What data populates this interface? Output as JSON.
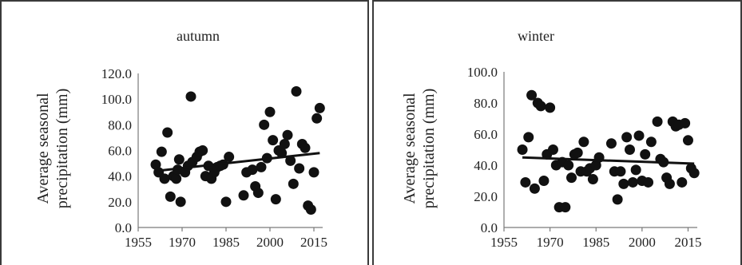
{
  "chart_data": [
    {
      "type": "scatter",
      "title": "autumn",
      "ylabel_lines": [
        "Average  seasonal",
        "precipitation (mm)"
      ],
      "xlabel": "",
      "xlim": [
        1955,
        2018
      ],
      "ylim": [
        0,
        120
      ],
      "x_ticks": [
        1955,
        1970,
        1985,
        2000,
        2015
      ],
      "y_ticks": [
        "0.0",
        "20.0",
        "40.0",
        "60.0",
        "80.0",
        "100.0",
        "120.0"
      ],
      "y_tick_values": [
        0,
        20,
        40,
        60,
        80,
        100,
        120
      ],
      "grid": false,
      "legend": "none",
      "points": [
        [
          1961,
          49
        ],
        [
          1962,
          43
        ],
        [
          1963,
          59
        ],
        [
          1964,
          38
        ],
        [
          1965,
          74
        ],
        [
          1966,
          24
        ],
        [
          1967,
          40
        ],
        [
          1968,
          38
        ],
        [
          1968.5,
          45
        ],
        [
          1969,
          53
        ],
        [
          1969.5,
          20
        ],
        [
          1971,
          43
        ],
        [
          1972,
          48
        ],
        [
          1973,
          102
        ],
        [
          1973.5,
          51
        ],
        [
          1975,
          55
        ],
        [
          1976,
          59
        ],
        [
          1977,
          60
        ],
        [
          1978,
          40
        ],
        [
          1979,
          48
        ],
        [
          1980,
          38
        ],
        [
          1981,
          43
        ],
        [
          1982,
          47
        ],
        [
          1983,
          48
        ],
        [
          1984,
          49
        ],
        [
          1985,
          20
        ],
        [
          1986,
          55
        ],
        [
          1991,
          25
        ],
        [
          1992,
          43
        ],
        [
          1994,
          45
        ],
        [
          1995,
          32
        ],
        [
          1996,
          27
        ],
        [
          1997,
          47
        ],
        [
          1998,
          80
        ],
        [
          1999,
          54
        ],
        [
          2000,
          90
        ],
        [
          2001,
          68
        ],
        [
          2002,
          22
        ],
        [
          2003,
          60
        ],
        [
          2004,
          58
        ],
        [
          2005,
          65
        ],
        [
          2006,
          72
        ],
        [
          2007,
          52
        ],
        [
          2008,
          34
        ],
        [
          2009,
          106
        ],
        [
          2010,
          46
        ],
        [
          2011,
          65
        ],
        [
          2012,
          62
        ],
        [
          2013,
          17
        ],
        [
          2014,
          14
        ],
        [
          2015,
          43
        ],
        [
          2016,
          85
        ],
        [
          2017,
          93
        ]
      ],
      "trendline": [
        [
          1961,
          44
        ],
        [
          2017,
          58
        ]
      ]
    },
    {
      "type": "scatter",
      "title": "winter",
      "ylabel_lines": [
        "Average  seasonal",
        "precipitation (mm)"
      ],
      "xlabel": "",
      "xlim": [
        1955,
        2018
      ],
      "ylim": [
        0,
        100
      ],
      "x_ticks": [
        1955,
        1970,
        1985,
        2000,
        2015
      ],
      "y_ticks": [
        "0.0",
        "20.0",
        "40.0",
        "60.0",
        "80.0",
        "100.0"
      ],
      "y_tick_values": [
        0,
        20,
        40,
        60,
        80,
        100
      ],
      "grid": false,
      "legend": "none",
      "points": [
        [
          1961,
          50
        ],
        [
          1962,
          29
        ],
        [
          1963,
          58
        ],
        [
          1964,
          85
        ],
        [
          1965,
          25
        ],
        [
          1966,
          80
        ],
        [
          1967,
          78
        ],
        [
          1968,
          30
        ],
        [
          1969,
          47
        ],
        [
          1970,
          77
        ],
        [
          1971,
          50
        ],
        [
          1972,
          40
        ],
        [
          1973,
          13
        ],
        [
          1974,
          42
        ],
        [
          1975,
          13
        ],
        [
          1976,
          40
        ],
        [
          1977,
          32
        ],
        [
          1978,
          47
        ],
        [
          1979,
          48
        ],
        [
          1980,
          36
        ],
        [
          1981,
          55
        ],
        [
          1982,
          36
        ],
        [
          1983,
          38
        ],
        [
          1984,
          31
        ],
        [
          1985,
          40
        ],
        [
          1986,
          45
        ],
        [
          1990,
          54
        ],
        [
          1991,
          36
        ],
        [
          1992,
          18
        ],
        [
          1993,
          36
        ],
        [
          1994,
          28
        ],
        [
          1995,
          58
        ],
        [
          1996,
          50
        ],
        [
          1997,
          29
        ],
        [
          1998,
          37
        ],
        [
          1999,
          59
        ],
        [
          2000,
          30
        ],
        [
          2001,
          47
        ],
        [
          2002,
          29
        ],
        [
          2003,
          55
        ],
        [
          2005,
          68
        ],
        [
          2006,
          44
        ],
        [
          2007,
          42
        ],
        [
          2008,
          32
        ],
        [
          2009,
          28
        ],
        [
          2010,
          68
        ],
        [
          2011,
          65
        ],
        [
          2012,
          66
        ],
        [
          2013,
          29
        ],
        [
          2014,
          67
        ],
        [
          2015,
          56
        ],
        [
          2016,
          38
        ],
        [
          2017,
          35
        ]
      ],
      "trendline": [
        [
          1961,
          45
        ],
        [
          2017,
          41
        ]
      ]
    }
  ]
}
